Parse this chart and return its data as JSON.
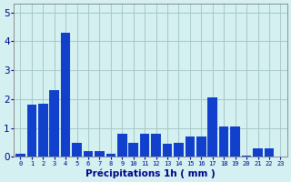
{
  "heights": [
    0.1,
    1.8,
    1.85,
    2.3,
    4.3,
    0.5,
    0.2,
    0.2,
    0.1,
    0.8,
    0.5,
    0.8,
    0.8,
    0.45,
    0.5,
    0.7,
    0.7,
    2.05,
    1.05,
    1.05,
    0.05,
    0.3,
    0.3,
    0.0
  ],
  "bar_color": "#1040cc",
  "background_color": "#d4f0f0",
  "grid_color": "#a8c8c8",
  "xlabel": "Précipitations 1h ( mm )",
  "xlabel_color": "#00008b",
  "tick_color": "#00008b",
  "ylim": [
    0,
    5.3
  ],
  "yticks": [
    0,
    1,
    2,
    3,
    4,
    5
  ],
  "bar_width": 0.85,
  "figsize": [
    3.2,
    2.0
  ],
  "dpi": 100
}
